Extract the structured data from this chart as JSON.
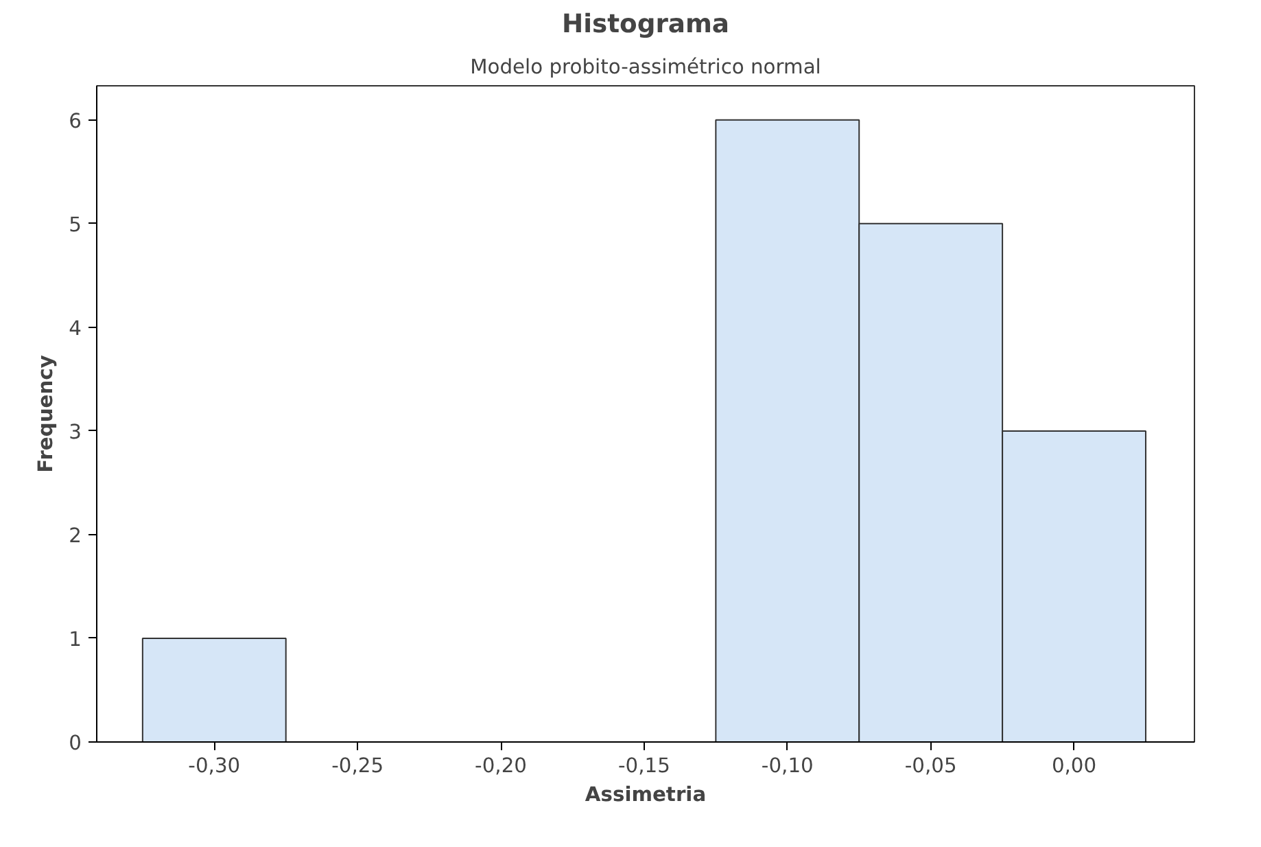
{
  "chart_data": {
    "type": "histogram",
    "title": "Histograma",
    "subtitle": "Modelo probito-assimétrico normal",
    "xlabel": "Assimetria",
    "ylabel": "Frequency",
    "bins": [
      -0.325,
      -0.275,
      -0.225,
      -0.175,
      -0.125,
      -0.075,
      -0.025,
      0.025
    ],
    "values": [
      1,
      0,
      0,
      0,
      6,
      5,
      3
    ],
    "color": "#d6e6f7",
    "xlim": [
      -0.341,
      0.042
    ],
    "ylim": [
      0,
      6.33
    ],
    "xticks": [
      {
        "value": -0.3,
        "label": "-0,30"
      },
      {
        "value": -0.25,
        "label": "-0,25"
      },
      {
        "value": -0.2,
        "label": "-0,20"
      },
      {
        "value": -0.15,
        "label": "-0,15"
      },
      {
        "value": -0.1,
        "label": "-0,10"
      },
      {
        "value": -0.05,
        "label": "-0,05"
      },
      {
        "value": 0,
        "label": "0,00"
      }
    ],
    "yticks": [
      0,
      1,
      2,
      3,
      4,
      5,
      6
    ],
    "grid": false
  }
}
